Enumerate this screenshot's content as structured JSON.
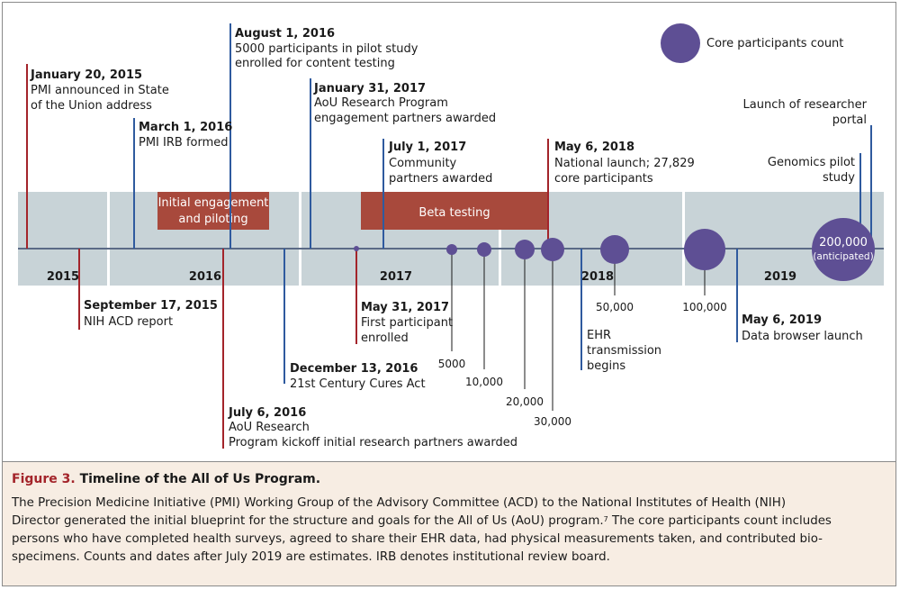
{
  "legend": {
    "label": "Core participants count",
    "color": "#5e4f94"
  },
  "colors": {
    "band": "#c8d3d7",
    "red": "#a3242a",
    "blue": "#2f5a9e",
    "bar": "#a8493c",
    "bubble": "#5e4f94"
  },
  "years": [
    "2015",
    "2016",
    "2017",
    "2018",
    "2019"
  ],
  "phases": [
    {
      "lines": [
        "Initial engagement",
        "and piloting"
      ]
    },
    {
      "lines": [
        "Beta testing"
      ]
    }
  ],
  "events": [
    {
      "date": "January 20, 2015",
      "lines": [
        "PMI announced in State",
        "of the Union address"
      ]
    },
    {
      "date": "March 1, 2016",
      "lines": [
        "PMI IRB formed"
      ]
    },
    {
      "date": "August 1, 2016",
      "lines": [
        "5000 participants in pilot study",
        "enrolled for content testing"
      ]
    },
    {
      "date": "January 31, 2017",
      "lines": [
        "AoU Research Program",
        "engagement partners awarded"
      ]
    },
    {
      "date": "July 1, 2017",
      "lines": [
        "Community",
        "partners awarded"
      ]
    },
    {
      "date": "May 6, 2018",
      "lines": [
        "National launch; 27,829",
        "core participants"
      ]
    },
    {
      "date": "",
      "lines": [
        "Launch of researcher",
        "portal"
      ]
    },
    {
      "date": "",
      "lines": [
        "Genomics pilot",
        "study"
      ]
    },
    {
      "date": "September 17, 2015",
      "lines": [
        "NIH ACD report"
      ]
    },
    {
      "date": "December 13, 2016",
      "lines": [
        "21st Century Cures Act"
      ]
    },
    {
      "date": "July 6, 2016",
      "lines": [
        "AoU Research",
        "Program kickoff initial research partners awarded"
      ]
    },
    {
      "date": "May 31, 2017",
      "lines": [
        "First participant",
        "enrolled"
      ]
    },
    {
      "date": "",
      "lines": [
        "EHR",
        "transmission",
        "begins"
      ]
    },
    {
      "date": "May 6, 2019",
      "lines": [
        "Data browser launch"
      ]
    }
  ],
  "chart_data": {
    "type": "scatter",
    "series": [
      {
        "name": "Core participants count",
        "points": [
          {
            "label": "5000",
            "value": 5000
          },
          {
            "label": "10,000",
            "value": 10000
          },
          {
            "label": "20,000",
            "value": 20000
          },
          {
            "label": "30,000",
            "value": 30000
          },
          {
            "label": "50,000",
            "value": 50000
          },
          {
            "label": "100,000",
            "value": 100000
          },
          {
            "label": "200,000",
            "sublabel": "(anticipated)",
            "value": 200000
          }
        ]
      }
    ]
  },
  "caption": {
    "figure": "Figure 3.",
    "title": "Timeline of the All of Us Program.",
    "lines": [
      "The Precision Medicine Initiative (PMI) Working Group of the Advisory Committee (ACD) to the National Institutes of Health (NIH)",
      "Director generated the initial blueprint for the structure and goals for the All of Us (AoU) program.",
      "persons who have completed health surveys, agreed to share their EHR data, had physical measurements taken, and contributed bio-",
      "specimens. Counts and dates after July 2019 are estimates. IRB denotes institutional review board."
    ],
    "line2_ref": "7",
    "line2_tail": " The core participants count includes"
  }
}
